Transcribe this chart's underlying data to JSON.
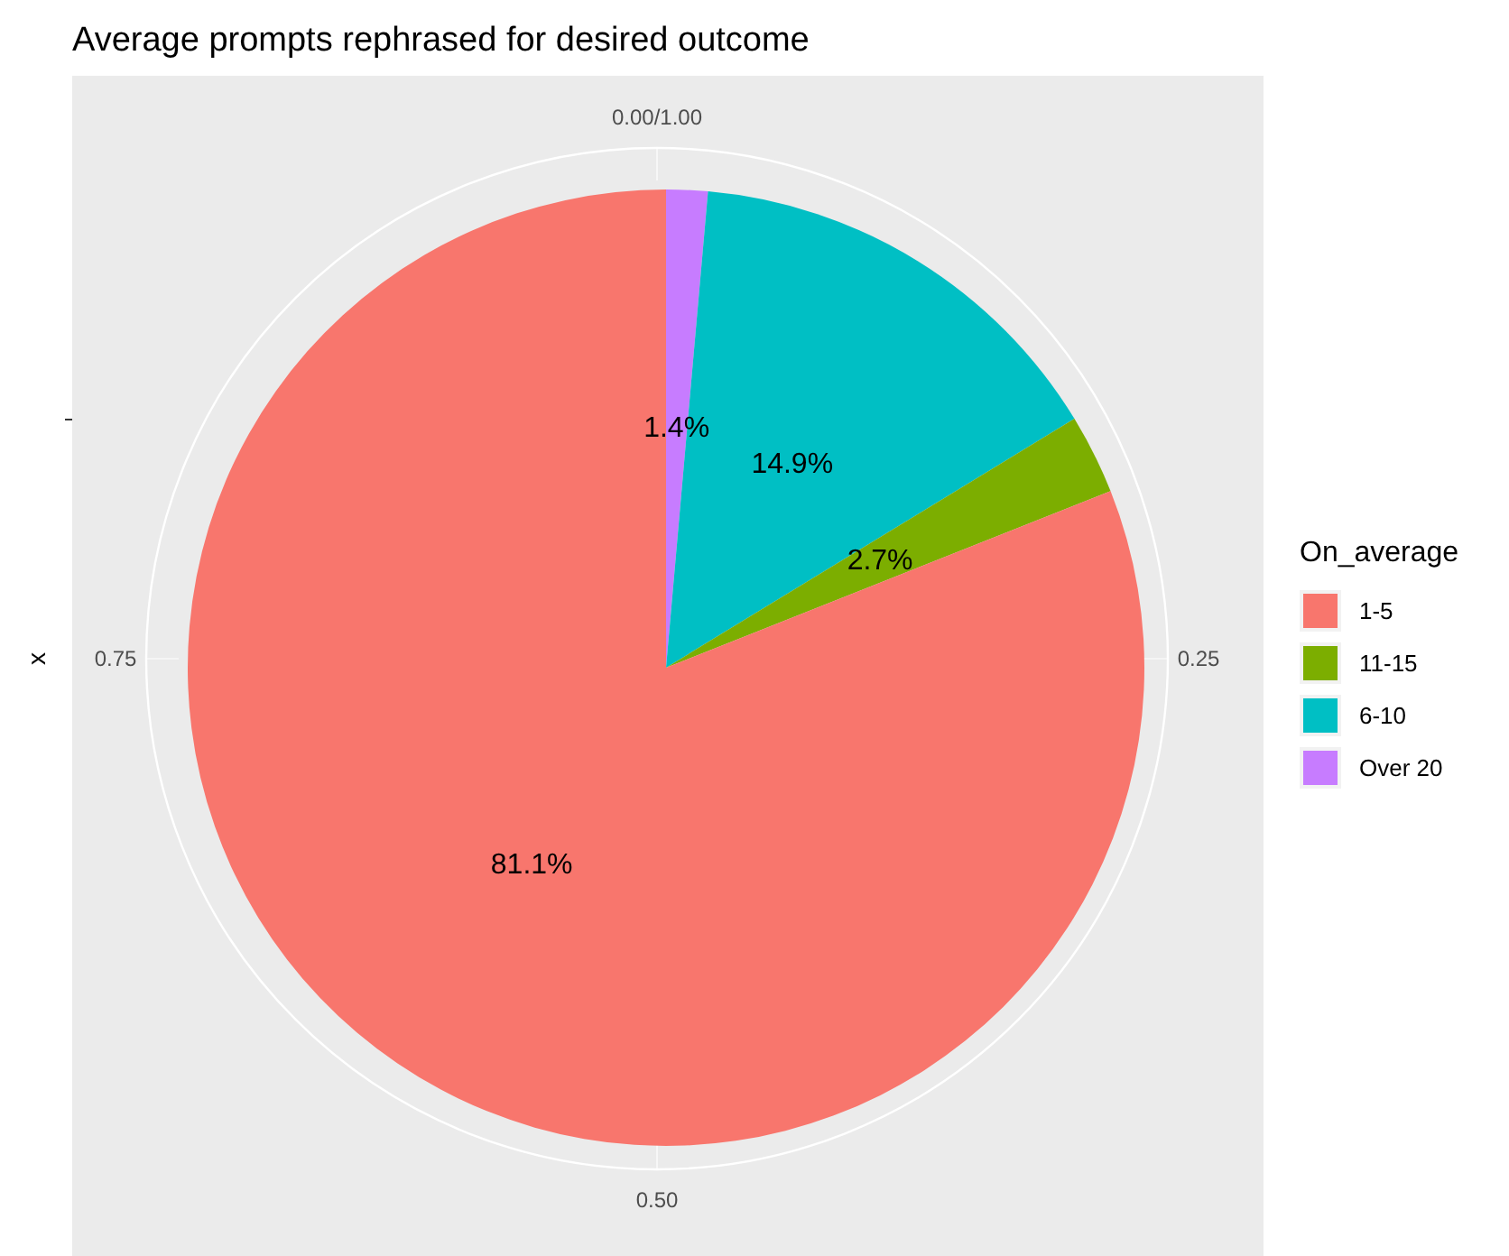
{
  "chart_data": {
    "type": "pie",
    "title": "Average prompts rephrased for desired outcome",
    "ylabel": "x",
    "legend_title": "On_average",
    "legend": "right",
    "categories": [
      "1-5",
      "11-15",
      "6-10",
      "Over 20"
    ],
    "values": [
      81.1,
      2.7,
      14.9,
      1.4
    ],
    "colors": [
      "#f8766d",
      "#7cae00",
      "#00bfc4",
      "#c77cff"
    ],
    "value_labels": [
      "81.1%",
      "2.7%",
      "14.9%",
      "1.4%"
    ],
    "annotations": [
      "0.00/1.00",
      "0.25",
      "0.50",
      "0.75"
    ],
    "grid": true
  }
}
